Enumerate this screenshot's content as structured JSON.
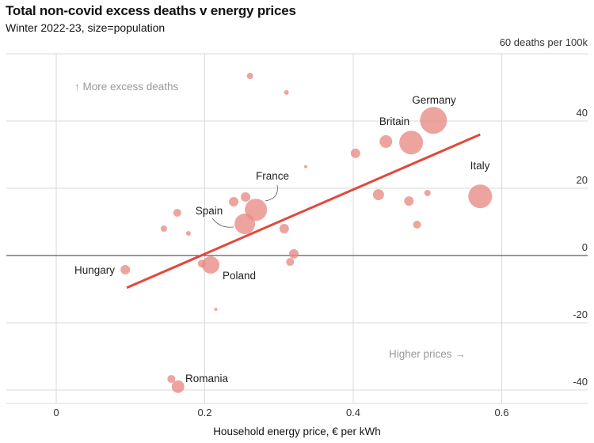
{
  "chart_data": {
    "type": "scatter",
    "title": "Total non-covid excess deaths v energy prices",
    "subtitle": "Winter 2022-23, size=population",
    "xlabel": "Household energy price, € per kWh",
    "ylabel": "60 deaths per 100k",
    "xlim": [
      -0.03,
      0.72
    ],
    "ylim": [
      -45,
      60
    ],
    "xticks": [
      "0",
      "0.2",
      "0.4",
      "0.6"
    ],
    "xtick_values": [
      0,
      0.2,
      0.4,
      0.6
    ],
    "yticks": [
      "40",
      "20",
      "0",
      "-20",
      "-40"
    ],
    "ytick_values": [
      40,
      20,
      0,
      -20,
      -40
    ],
    "grid": true,
    "annotations": {
      "up": "↑ More excess deaths",
      "right": "Higher prices →"
    },
    "colors": {
      "points": "#e88b84",
      "trend": "#e3483c",
      "grid": "#d9d9d9",
      "zero": "#333333"
    },
    "trendline": {
      "x": [
        0.095,
        0.571
      ],
      "y": [
        -9.6,
        36
      ]
    },
    "points": [
      {
        "x": 0.261,
        "y": 53.4,
        "size": 4
      },
      {
        "x": 0.31,
        "y": 48.5,
        "size": 3
      },
      {
        "x": 0.336,
        "y": 26.4,
        "size": 2
      },
      {
        "x": 0.403,
        "y": 30.4,
        "size": 6
      },
      {
        "x": 0.444,
        "y": 33.9,
        "size": 8
      },
      {
        "x": 0.478,
        "y": 33.6,
        "size": 15,
        "label": "Britain"
      },
      {
        "x": 0.508,
        "y": 40.2,
        "size": 17,
        "label": "Germany"
      },
      {
        "x": 0.571,
        "y": 17.6,
        "size": 15,
        "label": "Italy"
      },
      {
        "x": 0.434,
        "y": 18.1,
        "size": 7
      },
      {
        "x": 0.475,
        "y": 16.2,
        "size": 6
      },
      {
        "x": 0.5,
        "y": 18.6,
        "size": 4
      },
      {
        "x": 0.486,
        "y": 9.2,
        "size": 5
      },
      {
        "x": 0.255,
        "y": 17.4,
        "size": 6
      },
      {
        "x": 0.239,
        "y": 16.0,
        "size": 6
      },
      {
        "x": 0.269,
        "y": 13.6,
        "size": 14,
        "label": "France"
      },
      {
        "x": 0.254,
        "y": 9.4,
        "size": 13,
        "label": "Spain"
      },
      {
        "x": 0.163,
        "y": 12.7,
        "size": 5
      },
      {
        "x": 0.145,
        "y": 8.0,
        "size": 4
      },
      {
        "x": 0.178,
        "y": 6.6,
        "size": 3
      },
      {
        "x": 0.307,
        "y": 8.0,
        "size": 6
      },
      {
        "x": 0.32,
        "y": 0.5,
        "size": 6
      },
      {
        "x": 0.315,
        "y": -1.9,
        "size": 5
      },
      {
        "x": 0.196,
        "y": -2.4,
        "size": 5
      },
      {
        "x": 0.208,
        "y": -2.8,
        "size": 11,
        "label": "Poland"
      },
      {
        "x": 0.093,
        "y": -4.2,
        "size": 6,
        "label": "Hungary"
      },
      {
        "x": 0.215,
        "y": -16,
        "size": 2
      },
      {
        "x": 0.155,
        "y": -36.7,
        "size": 5
      },
      {
        "x": 0.164,
        "y": -39,
        "size": 8,
        "label": "Romania"
      }
    ]
  }
}
